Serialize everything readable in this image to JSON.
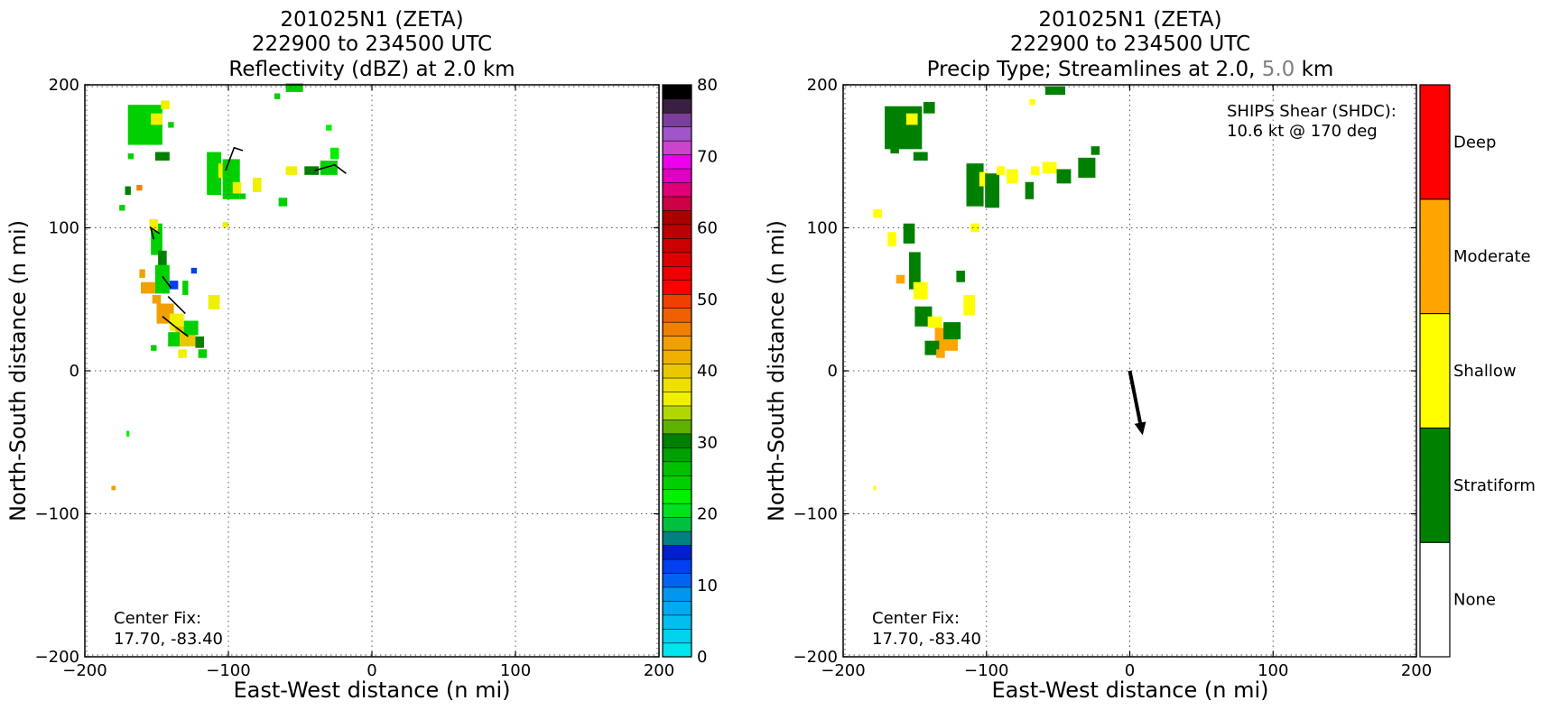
{
  "chart_data": [
    {
      "type": "heatmap",
      "title_lines": [
        "201025N1 (ZETA)",
        "222900 to 234500 UTC",
        "Reflectivity (dBZ) at 2.0 km"
      ],
      "xlabel": "East-West distance (n mi)",
      "ylabel": "North-South distance (n mi)",
      "xlim": [
        -200,
        200
      ],
      "ylim": [
        -200,
        200
      ],
      "xticks": [
        -200,
        -100,
        0,
        100,
        200
      ],
      "yticks": [
        -200,
        -100,
        0,
        100,
        200
      ],
      "xtick_labels": [
        "−200",
        "−100",
        "0",
        "100",
        "200"
      ],
      "ytick_labels": [
        "−200",
        "−100",
        "0",
        "100",
        "200"
      ],
      "grid": true,
      "annotation_lines": [
        "Center Fix:",
        "17.70, -83.40"
      ],
      "colorbar": {
        "min": 0,
        "max": 80,
        "tick_values": [
          0,
          10,
          20,
          30,
          40,
          50,
          60,
          70,
          80
        ],
        "tick_labels": [
          "0",
          "10",
          "20",
          "30",
          "40",
          "50",
          "60",
          "70",
          "80"
        ],
        "bins": [
          "#00e5ee",
          "#00d2ee",
          "#00bef0",
          "#00aaee",
          "#0095ee",
          "#0064f0",
          "#0040f0",
          "#0020d0",
          "#008080",
          "#00c040",
          "#00e020",
          "#00f000",
          "#00d000",
          "#00c000",
          "#00a000",
          "#008000",
          "#60b000",
          "#b0d800",
          "#f0f000",
          "#f0e000",
          "#e8c800",
          "#f0b000",
          "#f0a000",
          "#f08000",
          "#f06000",
          "#f04000",
          "#ff0000",
          "#ee0000",
          "#dd0000",
          "#cc0000",
          "#bb0000",
          "#aa0000",
          "#cc0044",
          "#dd0077",
          "#e000c0",
          "#ee00ee",
          "#cc44cc",
          "#a055c8",
          "#7a4099",
          "#3a2040",
          "#000000"
        ]
      },
      "echo_cells": [
        {
          "x": -158,
          "y": 172,
          "w": 24,
          "h": 28,
          "level": 25
        },
        {
          "x": -150,
          "y": 176,
          "w": 8,
          "h": 8,
          "level": 36
        },
        {
          "x": -144,
          "y": 186,
          "w": 6,
          "h": 6,
          "level": 36
        },
        {
          "x": -146,
          "y": 150,
          "w": 10,
          "h": 6,
          "level": 30
        },
        {
          "x": -110,
          "y": 138,
          "w": 10,
          "h": 30,
          "level": 25
        },
        {
          "x": -104,
          "y": 140,
          "w": 6,
          "h": 10,
          "level": 36
        },
        {
          "x": -98,
          "y": 134,
          "w": 12,
          "h": 28,
          "level": 25
        },
        {
          "x": -94,
          "y": 128,
          "w": 6,
          "h": 8,
          "level": 36
        },
        {
          "x": -80,
          "y": 130,
          "w": 6,
          "h": 10,
          "level": 36
        },
        {
          "x": -62,
          "y": 118,
          "w": 6,
          "h": 6,
          "level": 25
        },
        {
          "x": -56,
          "y": 140,
          "w": 8,
          "h": 6,
          "level": 36
        },
        {
          "x": -42,
          "y": 140,
          "w": 10,
          "h": 6,
          "level": 30
        },
        {
          "x": -30,
          "y": 142,
          "w": 12,
          "h": 10,
          "level": 25
        },
        {
          "x": -26,
          "y": 152,
          "w": 6,
          "h": 8,
          "level": 22
        },
        {
          "x": -54,
          "y": 198,
          "w": 12,
          "h": 6,
          "level": 25
        },
        {
          "x": -66,
          "y": 192,
          "w": 4,
          "h": 4,
          "level": 25
        },
        {
          "x": -30,
          "y": 170,
          "w": 4,
          "h": 4,
          "level": 22
        },
        {
          "x": -140,
          "y": 172,
          "w": 4,
          "h": 4,
          "level": 25
        },
        {
          "x": -168,
          "y": 150,
          "w": 4,
          "h": 4,
          "level": 25
        },
        {
          "x": -170,
          "y": 126,
          "w": 4,
          "h": 6,
          "level": 30
        },
        {
          "x": -162,
          "y": 128,
          "w": 4,
          "h": 4,
          "level": 46
        },
        {
          "x": -174,
          "y": 114,
          "w": 4,
          "h": 4,
          "level": 25
        },
        {
          "x": -150,
          "y": 92,
          "w": 8,
          "h": 22,
          "level": 25
        },
        {
          "x": -152,
          "y": 102,
          "w": 6,
          "h": 8,
          "level": 36
        },
        {
          "x": -146,
          "y": 76,
          "w": 6,
          "h": 16,
          "level": 30
        },
        {
          "x": -160,
          "y": 68,
          "w": 4,
          "h": 6,
          "level": 44
        },
        {
          "x": -156,
          "y": 58,
          "w": 10,
          "h": 8,
          "level": 44
        },
        {
          "x": -150,
          "y": 50,
          "w": 6,
          "h": 6,
          "level": 44
        },
        {
          "x": -146,
          "y": 64,
          "w": 10,
          "h": 20,
          "level": 25
        },
        {
          "x": -138,
          "y": 60,
          "w": 6,
          "h": 6,
          "level": 12
        },
        {
          "x": -130,
          "y": 58,
          "w": 4,
          "h": 10,
          "level": 25
        },
        {
          "x": -124,
          "y": 70,
          "w": 4,
          "h": 4,
          "level": 12
        },
        {
          "x": -144,
          "y": 40,
          "w": 12,
          "h": 14,
          "level": 44
        },
        {
          "x": -136,
          "y": 34,
          "w": 10,
          "h": 12,
          "level": 36
        },
        {
          "x": -130,
          "y": 24,
          "w": 14,
          "h": 14,
          "level": 40
        },
        {
          "x": -126,
          "y": 30,
          "w": 10,
          "h": 10,
          "level": 25
        },
        {
          "x": -120,
          "y": 20,
          "w": 6,
          "h": 8,
          "level": 30
        },
        {
          "x": -138,
          "y": 22,
          "w": 8,
          "h": 10,
          "level": 25
        },
        {
          "x": -132,
          "y": 12,
          "w": 6,
          "h": 6,
          "level": 36
        },
        {
          "x": -110,
          "y": 48,
          "w": 8,
          "h": 10,
          "level": 36
        },
        {
          "x": -152,
          "y": 16,
          "w": 4,
          "h": 4,
          "level": 25
        },
        {
          "x": -118,
          "y": 12,
          "w": 6,
          "h": 6,
          "level": 25
        },
        {
          "x": -102,
          "y": 102,
          "w": 4,
          "h": 4,
          "level": 36
        },
        {
          "x": -90,
          "y": 122,
          "w": 4,
          "h": 4,
          "level": 25
        },
        {
          "x": -170,
          "y": -44,
          "w": 2,
          "h": 4,
          "level": 22
        },
        {
          "x": -180,
          "y": -82,
          "w": 3,
          "h": 3,
          "level": 44
        }
      ],
      "streamline_segments": [
        [
          [
            -102,
            140
          ],
          [
            -96,
            156
          ],
          [
            -90,
            154
          ]
        ],
        [
          [
            -152,
            92
          ],
          [
            -154,
            100
          ],
          [
            -148,
            96
          ]
        ],
        [
          [
            -146,
            66
          ],
          [
            -140,
            58
          ]
        ],
        [
          [
            -142,
            52
          ],
          [
            -136,
            46
          ],
          [
            -130,
            40
          ]
        ],
        [
          [
            -146,
            38
          ],
          [
            -136,
            30
          ],
          [
            -128,
            24
          ]
        ],
        [
          [
            -40,
            140
          ],
          [
            -26,
            144
          ],
          [
            -18,
            138
          ]
        ]
      ]
    },
    {
      "type": "heatmap",
      "title_lines": [
        "201025N1 (ZETA)",
        "222900 to 234500 UTC"
      ],
      "title_line3_parts": [
        "Precip Type; Streamlines at 2.0, ",
        "5.0",
        " km"
      ],
      "title_gray_color": "#808080",
      "xlabel": "East-West distance (n mi)",
      "ylabel": "North-South distance (n mi)",
      "xlim": [
        -200,
        200
      ],
      "ylim": [
        -200,
        200
      ],
      "xticks": [
        -200,
        -100,
        0,
        100,
        200
      ],
      "yticks": [
        -200,
        -100,
        0,
        100,
        200
      ],
      "xtick_labels": [
        "−200",
        "−100",
        "0",
        "100",
        "200"
      ],
      "ytick_labels": [
        "−200",
        "−100",
        "0",
        "100",
        "200"
      ],
      "grid": true,
      "annotation_lines": [
        "Center Fix:",
        "17.70, -83.40"
      ],
      "shear_lines": [
        "SHIPS Shear (SHDC):",
        "10.6 kt @ 170 deg"
      ],
      "shear_vector": {
        "from": [
          0,
          0
        ],
        "to": [
          9,
          -45
        ],
        "magnitude_kt": 10.6,
        "direction_deg": 170
      },
      "categories": [
        "None",
        "Stratiform",
        "Shallow",
        "Moderate",
        "Deep"
      ],
      "category_colors": [
        "#ffffff",
        "#008000",
        "#ffff00",
        "#ffa500",
        "#ff0000"
      ],
      "precip_cells": [
        {
          "x": -158,
          "y": 170,
          "w": 26,
          "h": 30,
          "category": 1
        },
        {
          "x": -152,
          "y": 176,
          "w": 8,
          "h": 8,
          "category": 2
        },
        {
          "x": -140,
          "y": 184,
          "w": 8,
          "h": 8,
          "category": 1
        },
        {
          "x": -146,
          "y": 150,
          "w": 10,
          "h": 6,
          "category": 1
        },
        {
          "x": -108,
          "y": 130,
          "w": 12,
          "h": 30,
          "category": 1
        },
        {
          "x": -102,
          "y": 134,
          "w": 6,
          "h": 10,
          "category": 2
        },
        {
          "x": -96,
          "y": 126,
          "w": 10,
          "h": 24,
          "category": 1
        },
        {
          "x": -90,
          "y": 140,
          "w": 6,
          "h": 6,
          "category": 2
        },
        {
          "x": -82,
          "y": 136,
          "w": 8,
          "h": 10,
          "category": 2
        },
        {
          "x": -70,
          "y": 126,
          "w": 6,
          "h": 12,
          "category": 1
        },
        {
          "x": -66,
          "y": 140,
          "w": 6,
          "h": 6,
          "category": 2
        },
        {
          "x": -56,
          "y": 142,
          "w": 10,
          "h": 8,
          "category": 2
        },
        {
          "x": -46,
          "y": 136,
          "w": 10,
          "h": 10,
          "category": 1
        },
        {
          "x": -30,
          "y": 142,
          "w": 12,
          "h": 14,
          "category": 1
        },
        {
          "x": -24,
          "y": 154,
          "w": 6,
          "h": 6,
          "category": 1
        },
        {
          "x": -52,
          "y": 196,
          "w": 14,
          "h": 6,
          "category": 1
        },
        {
          "x": -68,
          "y": 188,
          "w": 4,
          "h": 4,
          "category": 2
        },
        {
          "x": -164,
          "y": 154,
          "w": 6,
          "h": 4,
          "category": 1
        },
        {
          "x": -176,
          "y": 110,
          "w": 6,
          "h": 6,
          "category": 2
        },
        {
          "x": -166,
          "y": 92,
          "w": 6,
          "h": 10,
          "category": 2
        },
        {
          "x": -154,
          "y": 96,
          "w": 8,
          "h": 14,
          "category": 1
        },
        {
          "x": -150,
          "y": 70,
          "w": 8,
          "h": 26,
          "category": 1
        },
        {
          "x": -160,
          "y": 64,
          "w": 6,
          "h": 6,
          "category": 3
        },
        {
          "x": -146,
          "y": 56,
          "w": 10,
          "h": 12,
          "category": 2
        },
        {
          "x": -144,
          "y": 38,
          "w": 12,
          "h": 14,
          "category": 1
        },
        {
          "x": -136,
          "y": 34,
          "w": 10,
          "h": 8,
          "category": 2
        },
        {
          "x": -128,
          "y": 22,
          "w": 16,
          "h": 16,
          "category": 3
        },
        {
          "x": -124,
          "y": 28,
          "w": 12,
          "h": 12,
          "category": 1
        },
        {
          "x": -138,
          "y": 16,
          "w": 10,
          "h": 10,
          "category": 1
        },
        {
          "x": -132,
          "y": 12,
          "w": 6,
          "h": 6,
          "category": 3
        },
        {
          "x": -112,
          "y": 46,
          "w": 8,
          "h": 14,
          "category": 2
        },
        {
          "x": -118,
          "y": 66,
          "w": 6,
          "h": 8,
          "category": 1
        },
        {
          "x": -108,
          "y": 100,
          "w": 6,
          "h": 6,
          "category": 2
        },
        {
          "x": -178,
          "y": -82,
          "w": 2,
          "h": 3,
          "category": 2
        }
      ]
    }
  ]
}
